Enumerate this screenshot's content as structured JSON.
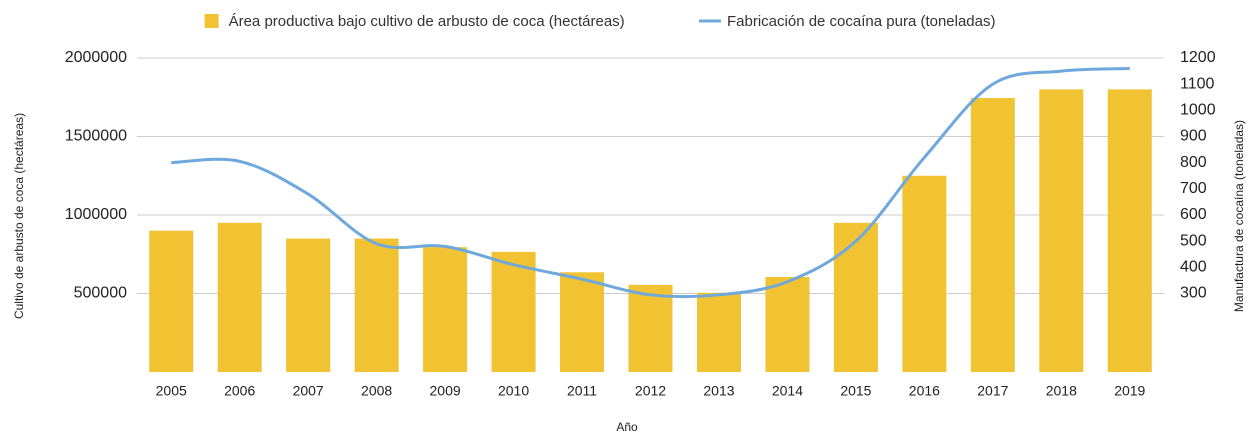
{
  "chart_data": {
    "type": "bar_line",
    "categories": [
      "2005",
      "2006",
      "2007",
      "2008",
      "2009",
      "2010",
      "2011",
      "2012",
      "2013",
      "2014",
      "2015",
      "2016",
      "2017",
      "2018",
      "2019"
    ],
    "series": [
      {
        "name": "Área productiva bajo cultivo de arbusto de coca (hectáreas)",
        "color": "#f1c232",
        "type": "bar",
        "values": [
          900000,
          950000,
          850000,
          850000,
          795000,
          765000,
          635000,
          555000,
          505000,
          605000,
          950000,
          1250000,
          1745000,
          1800000,
          1800000
        ]
      },
      {
        "name": "Fabricación de cocaína pura (toneladas)",
        "color": "#6fa8dc",
        "type": "line",
        "axis": "y2",
        "values": [
          800,
          805,
          680,
          490,
          480,
          410,
          355,
          295,
          295,
          345,
          500,
          820,
          1100,
          1150,
          1160
        ]
      }
    ],
    "xlabel": "Año",
    "ylabel": "Cultivo de arbusto de coca (hectáreas)",
    "y2label": "Manufactura de cocaína (toneladas)",
    "ylim": [
      0,
      2000000
    ],
    "yticks": [
      500000,
      1000000,
      1500000,
      2000000
    ],
    "y2lim": [
      0,
      1200
    ],
    "y2ticks": [
      300,
      400,
      500,
      600,
      700,
      800,
      900,
      1000,
      1100,
      1200
    ],
    "grid": true,
    "legend": "top"
  }
}
